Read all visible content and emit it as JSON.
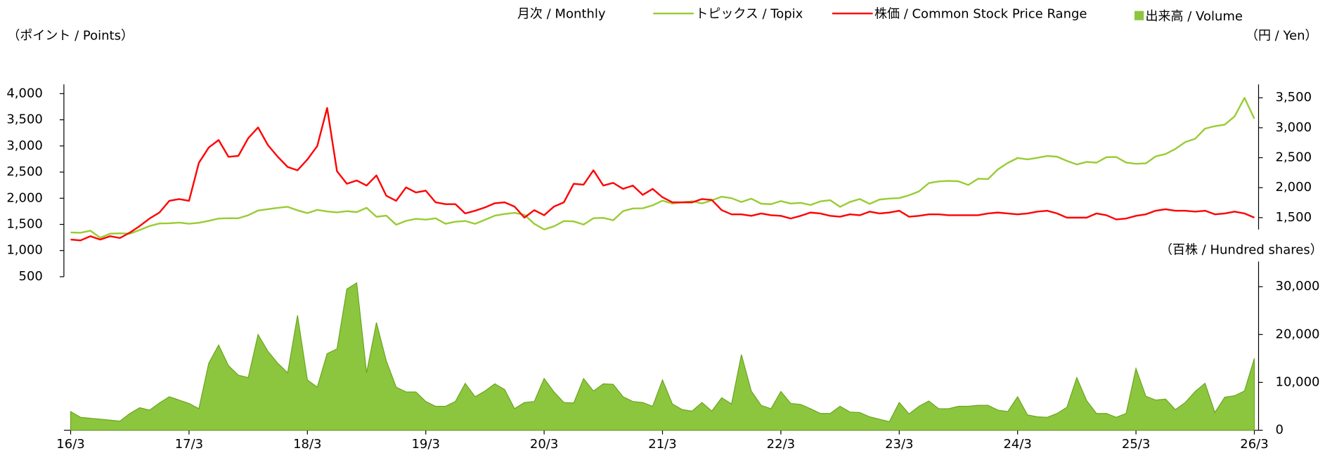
{
  "chart_data": {
    "type": "line",
    "legend_title": "月次 / Monthly",
    "ylabel": "（ポイント / Points）",
    "y2label": "（円 / Yen）",
    "y3label": "（百株 / Hundred shares）",
    "categories": [
      "16/3",
      null,
      null,
      null,
      null,
      null,
      null,
      null,
      null,
      null,
      null,
      null,
      "17/3",
      null,
      null,
      null,
      null,
      null,
      null,
      null,
      null,
      null,
      null,
      null,
      "18/3",
      null,
      null,
      null,
      null,
      null,
      null,
      null,
      null,
      null,
      null,
      null,
      "19/3",
      null,
      null,
      null,
      null,
      null,
      null,
      null,
      null,
      null,
      null,
      null,
      "20/3",
      null,
      null,
      null,
      null,
      null,
      null,
      null,
      null,
      null,
      null,
      null,
      "21/3",
      null,
      null,
      null,
      null,
      null,
      null,
      null,
      null,
      null,
      null,
      null,
      "22/3",
      null,
      null,
      null,
      null,
      null,
      null,
      null,
      null,
      null,
      null,
      null,
      "23/3",
      null,
      null,
      null,
      null,
      null,
      null,
      null,
      null,
      null,
      null,
      null,
      "24/3",
      null,
      null,
      null,
      null,
      null,
      null,
      null,
      null,
      null,
      null,
      null,
      "25/3",
      null,
      null,
      null,
      null,
      null,
      null,
      null,
      null,
      null,
      null,
      null,
      "26/3"
    ],
    "ylim": [
      500,
      4200
    ],
    "yticks": [
      500,
      {
        "value": 1000,
        "label": "1,000"
      },
      {
        "value": 1500,
        "label": "1,500"
      },
      {
        "value": 2000,
        "label": "2,000"
      },
      {
        "value": 2500,
        "label": "2,500"
      },
      {
        "value": 3000,
        "label": "3,000"
      },
      {
        "value": 3500,
        "label": "3,500"
      },
      {
        "value": 4000,
        "label": "4,000"
      }
    ],
    "y2lim": [
      1100,
      3700
    ],
    "y2ticks": [
      {
        "value": 1500,
        "label": "1,500"
      },
      {
        "value": 2000,
        "label": "2,000"
      },
      {
        "value": 2500,
        "label": "2,500"
      },
      {
        "value": 3000,
        "label": "3,000"
      },
      {
        "value": 3500,
        "label": "3,500"
      }
    ],
    "y3lim": [
      0,
      35000
    ],
    "y3ticks": [
      0,
      {
        "value": 10000,
        "label": "10,000"
      },
      {
        "value": 20000,
        "label": "20,000"
      },
      {
        "value": 30000,
        "label": "30,000"
      }
    ],
    "series": [
      {
        "name": "トピックス / Topix",
        "color": "#99cc33",
        "axis": "y",
        "values": [
          1347,
          1340,
          1379,
          1245,
          1322,
          1329,
          1322,
          1393,
          1469,
          1518,
          1521,
          1535,
          1512,
          1531,
          1568,
          1611,
          1618,
          1617,
          1675,
          1765,
          1792,
          1817,
          1836,
          1768,
          1716,
          1777,
          1747,
          1730,
          1753,
          1735,
          1817,
          1646,
          1667,
          1494,
          1567,
          1607,
          1591,
          1617,
          1512,
          1551,
          1565,
          1511,
          1587,
          1667,
          1699,
          1721,
          1684,
          1511,
          1403,
          1464,
          1563,
          1558,
          1496,
          1618,
          1625,
          1579,
          1754,
          1805,
          1808,
          1864,
          1954,
          1898,
          1922,
          1943,
          1901,
          1960,
          2030,
          2001,
          1928,
          1992,
          1896,
          1886,
          1946,
          1899,
          1912,
          1871,
          1940,
          1963,
          1835,
          1929,
          1985,
          1892,
          1975,
          1994,
          2003,
          2057,
          2131,
          2289,
          2322,
          2332,
          2324,
          2254,
          2374,
          2366,
          2551,
          2675,
          2769,
          2743,
          2773,
          2809,
          2794,
          2713,
          2646,
          2694,
          2680,
          2785,
          2788,
          2683,
          2659,
          2667,
          2801,
          2845,
          2943,
          3075,
          3137,
          3331,
          3378,
          3408,
          3566,
          3920,
          3520
        ]
      },
      {
        "name": "株価 / Common Stock Price Range",
        "color": "#ff0000",
        "axis": "y2",
        "values": [
          1134,
          1120,
          1190,
          1134,
          1190,
          1160,
          1250,
          1360,
          1485,
          1585,
          1780,
          1810,
          1780,
          2415,
          2670,
          2795,
          2515,
          2530,
          2825,
          3005,
          2710,
          2515,
          2345,
          2290,
          2470,
          2695,
          3330,
          2275,
          2065,
          2120,
          2035,
          2205,
          1865,
          1780,
          2005,
          1920,
          1950,
          1755,
          1725,
          1725,
          1570,
          1615,
          1670,
          1740,
          1755,
          1685,
          1500,
          1625,
          1540,
          1685,
          1755,
          2065,
          2050,
          2290,
          2035,
          2080,
          1980,
          2035,
          1880,
          1980,
          1840,
          1755,
          1755,
          1755,
          1810,
          1795,
          1625,
          1555,
          1555,
          1530,
          1570,
          1540,
          1530,
          1485,
          1530,
          1585,
          1570,
          1530,
          1515,
          1555,
          1540,
          1600,
          1570,
          1585,
          1615,
          1515,
          1530,
          1555,
          1555,
          1540,
          1540,
          1540,
          1540,
          1570,
          1585,
          1570,
          1555,
          1570,
          1600,
          1615,
          1570,
          1500,
          1500,
          1500,
          1570,
          1540,
          1470,
          1485,
          1530,
          1555,
          1615,
          1640,
          1615,
          1615,
          1600,
          1615,
          1555,
          1570,
          1600,
          1570,
          1500
        ]
      },
      {
        "name": "出来高 / Volume",
        "color": "#8cc63f",
        "axis": "y3",
        "type": "area",
        "values": [
          3900,
          2700,
          2500,
          2300,
          2100,
          1900,
          3500,
          4700,
          4200,
          5700,
          7000,
          6300,
          5600,
          4500,
          14000,
          17800,
          13500,
          11500,
          11000,
          20000,
          16500,
          14000,
          12000,
          24000,
          10500,
          9000,
          16000,
          17000,
          29500,
          30800,
          12000,
          22500,
          14500,
          9000,
          8000,
          8000,
          6000,
          5000,
          5000,
          6000,
          9800,
          7000,
          8200,
          9700,
          8500,
          4500,
          5800,
          6000,
          10800,
          8000,
          5800,
          5700,
          10800,
          8200,
          9700,
          9600,
          7000,
          6000,
          5800,
          5000,
          10500,
          5500,
          4300,
          4000,
          5800,
          4000,
          6800,
          5500,
          15800,
          8200,
          5200,
          4500,
          8100,
          5600,
          5400,
          4500,
          3500,
          3500,
          5000,
          3800,
          3700,
          2800,
          2300,
          1800,
          5800,
          3400,
          5000,
          6100,
          4500,
          4500,
          5000,
          5000,
          5200,
          5200,
          4200,
          3900,
          7000,
          3200,
          2800,
          2700,
          3500,
          4800,
          11000,
          6200,
          3500,
          3500,
          2700,
          3500,
          12900,
          7100,
          6300,
          6500,
          4300,
          5800,
          8100,
          9800,
          3700,
          6900,
          7200,
          8200,
          15000
        ]
      }
    ]
  }
}
